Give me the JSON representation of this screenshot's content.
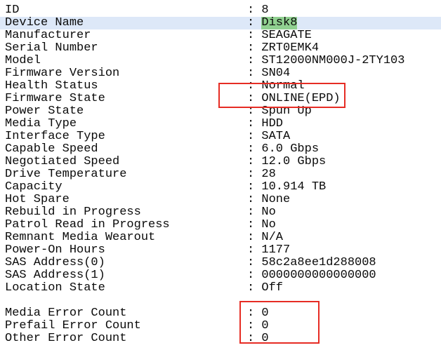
{
  "separator": ": ",
  "colors": {
    "background": "#ffffff",
    "text": "#0a0a0a",
    "row_highlight": "#dde8f8",
    "value_highlight": "#90d090",
    "annotation_box": "#e62c24"
  },
  "rows": [
    {
      "label": "ID",
      "value": "8"
    },
    {
      "label": "Device Name",
      "value": "Disk8",
      "row_highlighted": true,
      "value_highlighted": true
    },
    {
      "label": "Manufacturer",
      "value": "SEAGATE"
    },
    {
      "label": "Serial Number",
      "value": "ZRT0EMK4"
    },
    {
      "label": "Model",
      "value": "ST12000NM000J-2TY103"
    },
    {
      "label": "Firmware Version",
      "value": "SN04"
    },
    {
      "label": "Health Status",
      "value": "Normal"
    },
    {
      "label": "Firmware State",
      "value": "ONLINE(EPD)"
    },
    {
      "label": "Power State",
      "value": "Spun Up"
    },
    {
      "label": "Media Type",
      "value": "HDD"
    },
    {
      "label": "Interface Type",
      "value": "SATA"
    },
    {
      "label": "Capable Speed",
      "value": "6.0 Gbps"
    },
    {
      "label": "Negotiated Speed",
      "value": "12.0 Gbps"
    },
    {
      "label": "Drive Temperature",
      "value": "28"
    },
    {
      "label": "Capacity",
      "value": "10.914 TB"
    },
    {
      "label": "Hot Spare",
      "value": "None"
    },
    {
      "label": "Rebuild in Progress",
      "value": "No"
    },
    {
      "label": "Patrol Read in Progress",
      "value": "No"
    },
    {
      "label": "Remnant Media Wearout",
      "value": "N/A"
    },
    {
      "label": "Power-On Hours",
      "value": "1177"
    },
    {
      "label": "SAS Address(0)",
      "value": "58c2a8ee1d288008"
    },
    {
      "label": "SAS Address(1)",
      "value": "0000000000000000"
    },
    {
      "label": "Location State",
      "value": "Off"
    },
    {
      "label": "",
      "value": "",
      "blank": true
    },
    {
      "label": "Media Error Count",
      "value": "0"
    },
    {
      "label": "Prefail Error Count",
      "value": "0"
    },
    {
      "label": "Other Error Count",
      "value": "0"
    }
  ],
  "annotations": [
    {
      "name": "health-firmware-annotation-box",
      "marks": [
        "Health Status",
        "Firmware State"
      ]
    },
    {
      "name": "error-count-annotation-box",
      "marks": [
        "Media Error Count",
        "Prefail Error Count",
        "Other Error Count"
      ]
    }
  ]
}
